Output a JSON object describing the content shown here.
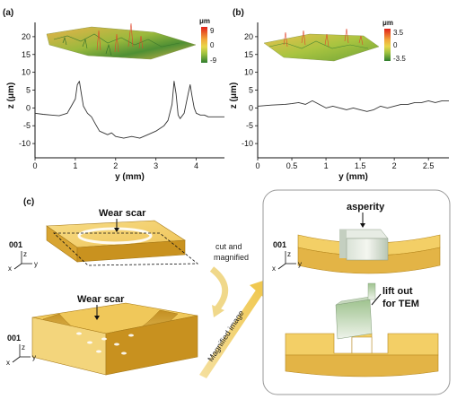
{
  "panels": {
    "a": "(a)",
    "b": "(b)",
    "c": "(c)"
  },
  "colorbar_a": {
    "unit": "μm",
    "max": "9",
    "mid": "0",
    "min": "-9"
  },
  "colorbar_b": {
    "unit": "μm",
    "max": "3.5",
    "mid": "0",
    "min": "-3.5"
  },
  "diagram": {
    "wear_scar_top": "Wear scar",
    "wear_scar_bottom": "Wear scar",
    "cut_line1": "cut and",
    "cut_line2": "magnified",
    "magnified": "Magnified image",
    "asperity": "asperity",
    "lift_line1": "lift out",
    "lift_line2": "for TEM",
    "dir_001": "001",
    "ax_z": "z",
    "ax_x": "x",
    "ax_y": "y"
  },
  "colors": {
    "profile_line": "#333333",
    "block_top": "#f3cf6c",
    "block_side": "#d9a531",
    "block_dark": "#b8861b",
    "box_border": "#999999"
  },
  "chart_data": [
    {
      "type": "line",
      "panel": "a",
      "xlabel": "y (mm)",
      "ylabel": "z (μm)",
      "xlim": [
        0,
        4.7
      ],
      "ylim": [
        -14,
        24
      ],
      "xticks": [
        0,
        1,
        2,
        3,
        4
      ],
      "yticks": [
        -10,
        -5,
        0,
        5,
        10,
        15,
        20
      ],
      "series": [
        {
          "x": [
            0.0,
            0.2,
            0.4,
            0.6,
            0.8,
            0.9,
            1.0,
            1.05,
            1.1,
            1.15,
            1.2,
            1.3,
            1.4,
            1.5,
            1.6,
            1.7,
            1.8,
            1.9,
            2.0,
            2.2,
            2.4,
            2.6,
            2.8,
            3.0,
            3.2,
            3.3,
            3.4,
            3.45,
            3.5,
            3.55,
            3.6,
            3.7,
            3.8,
            3.85,
            3.9,
            3.95,
            4.0,
            4.1,
            4.2,
            4.3,
            4.5,
            4.7
          ],
          "y": [
            -1.5,
            -1.8,
            -2.0,
            -2.2,
            -1.5,
            0.5,
            2.5,
            6.5,
            7.5,
            4.0,
            0.5,
            -1.5,
            -2.5,
            -4.5,
            -6.5,
            -7.0,
            -7.5,
            -7.0,
            -8.0,
            -8.5,
            -8.0,
            -8.5,
            -7.5,
            -6.5,
            -5.0,
            -3.5,
            1.0,
            7.5,
            4.0,
            -2.0,
            -3.0,
            -1.5,
            4.0,
            6.5,
            3.0,
            0.0,
            -1.5,
            -2.0,
            -2.0,
            -2.5,
            -2.5,
            -2.5
          ]
        }
      ]
    },
    {
      "type": "line",
      "panel": "b",
      "xlabel": "y (mm)",
      "ylabel": "z (μm)",
      "xlim": [
        0,
        2.8
      ],
      "ylim": [
        -14,
        24
      ],
      "xticks": [
        0,
        0.5,
        1,
        1.5,
        2,
        2.5
      ],
      "yticks": [
        -10,
        -5,
        0,
        5,
        10,
        15,
        20
      ],
      "series": [
        {
          "x": [
            0.0,
            0.2,
            0.4,
            0.5,
            0.6,
            0.7,
            0.8,
            0.9,
            1.0,
            1.1,
            1.2,
            1.3,
            1.4,
            1.5,
            1.6,
            1.7,
            1.8,
            1.9,
            2.0,
            2.1,
            2.2,
            2.3,
            2.4,
            2.5,
            2.6,
            2.7,
            2.8
          ],
          "y": [
            0.5,
            0.8,
            1.0,
            1.2,
            1.5,
            1.0,
            2.0,
            1.0,
            0.0,
            0.5,
            0.0,
            -0.5,
            0.0,
            -0.5,
            -1.0,
            -0.5,
            0.5,
            0.0,
            0.5,
            1.0,
            1.0,
            1.5,
            1.5,
            2.0,
            1.5,
            2.0,
            2.0
          ]
        }
      ]
    }
  ]
}
